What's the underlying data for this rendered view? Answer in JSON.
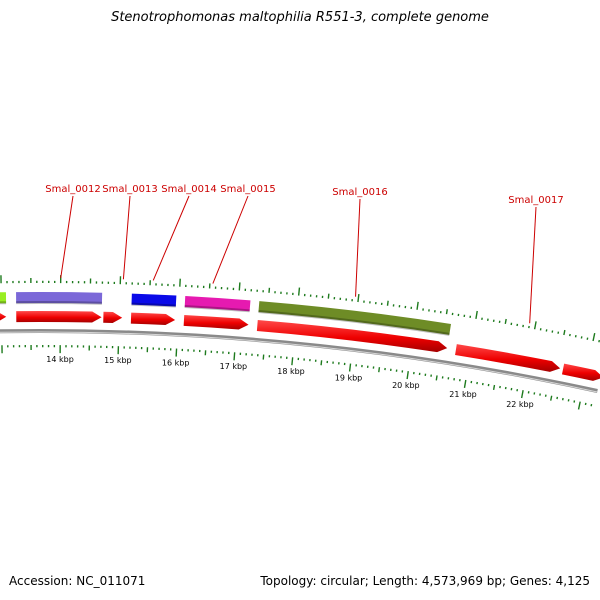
{
  "title": "Stenotrophomonas maltophilia R551-3, complete genome",
  "footer": {
    "accession": "Accession: NC_011071",
    "summary": "Topology: circular; Length: 4,573,969 bp; Genes: 4,125"
  },
  "colors": {
    "cds_arrow": "#ee0000",
    "label": "#cc0000",
    "tick": "#1d7a1d",
    "backbone": "#8a8a8a"
  },
  "genes": [
    {
      "id": "Smal_0012",
      "label": "Smal_0012",
      "color": "#7b68d8",
      "start_kbp": 13.25,
      "end_kbp": 14.7
    },
    {
      "id": "Smal_0013",
      "label": "Smal_0013",
      "color": "#ffffff",
      "start_kbp": 14.73,
      "end_kbp": 15.05
    },
    {
      "id": "Smal_0014",
      "label": "Smal_0014",
      "color": "#0a0ae8",
      "start_kbp": 15.2,
      "end_kbp": 15.95
    },
    {
      "id": "Smal_0015",
      "label": "Smal_0015",
      "color": "#e61ab0",
      "start_kbp": 16.1,
      "end_kbp": 17.2
    },
    {
      "id": "Smal_0016",
      "label": "Smal_0016",
      "color": "#6e8c26",
      "start_kbp": 17.35,
      "end_kbp": 20.6
    },
    {
      "id": "Smal_0017",
      "label": "Smal_0017",
      "color": "#ffffff",
      "start_kbp": 20.75,
      "end_kbp": 22.55
    }
  ],
  "partial_left_gene_color": "#99ee22",
  "scale_labels": [
    "14 kbp",
    "15 kbp",
    "16 kbp",
    "17 kbp",
    "18 kbp",
    "19 kbp",
    "20 kbp",
    "21 kbp",
    "22 kbp"
  ]
}
